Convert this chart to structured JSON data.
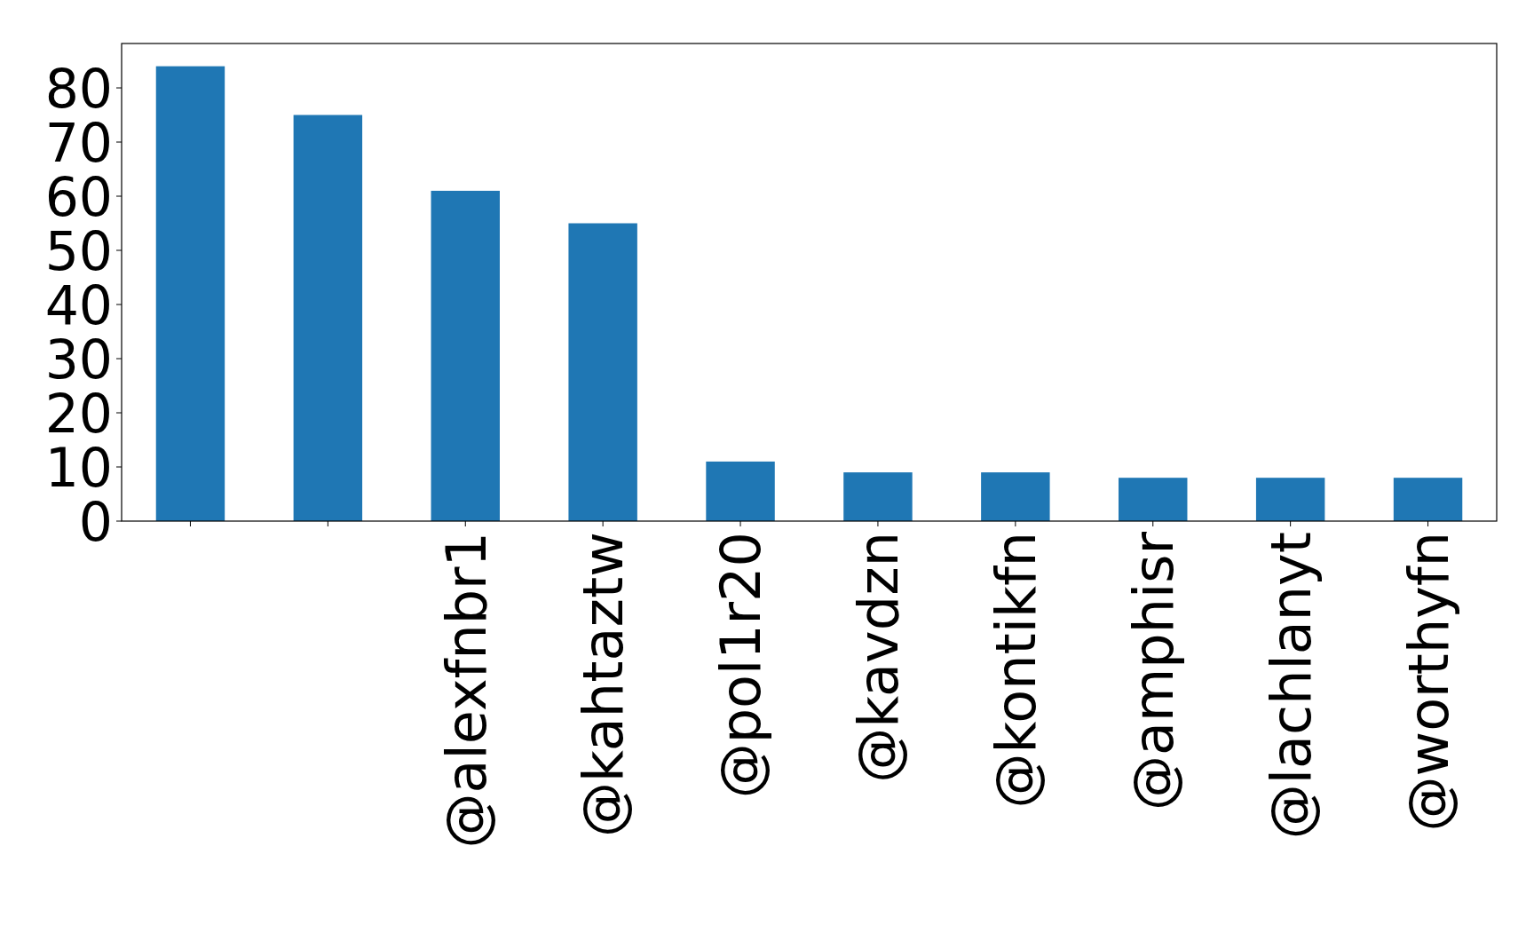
{
  "chart_data": {
    "type": "bar",
    "categories": [
      null,
      null,
      "@alexfnbr1",
      "@kahtaztw",
      "@pol1r20",
      "@kavdzn",
      "@kontikfn",
      "@amphisr",
      "@lachlanyt",
      "@worthyfn"
    ],
    "values": [
      84,
      75,
      61,
      55,
      11,
      9,
      9,
      8,
      8,
      8
    ],
    "color": "#1f77b4",
    "ylim": [
      0,
      88.2
    ],
    "yticks": [
      0,
      10,
      20,
      30,
      40,
      50,
      60,
      70,
      80
    ],
    "grid": false
  }
}
